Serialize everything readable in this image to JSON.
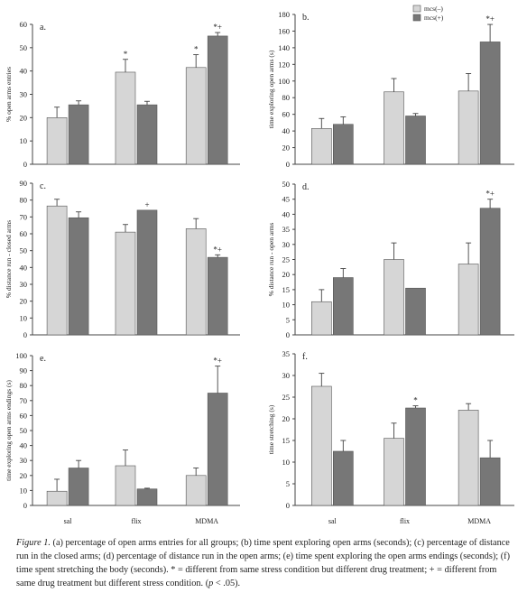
{
  "colors": {
    "mcs_minus": "#d6d6d6",
    "mcs_plus": "#777777",
    "marker": "#333333",
    "axis": "#444444"
  },
  "legend": {
    "items": [
      "mcs(–)",
      "mcs(+)"
    ],
    "placement": "top-right of panel b"
  },
  "categories": [
    "sal",
    "flix",
    "MDMA"
  ],
  "caption": {
    "lead": "Figure 1.",
    "body": " (a) percentage of open arms entries for all groups; (b) time spent exploring open arms (seconds); (c) percentage of distance run in the closed arms; (d) percentage of distance run in the open arms; (e) time spent exploring the open arms endings (seconds); (f) time spent stretching the body (seconds). * = different from same stress condition but different drug treatment; + = different from same drug treatment but different stress condition. (",
    "p": "p",
    "tail": " < .05)."
  },
  "chart_data": [
    {
      "type": "bar",
      "panel": "a.",
      "ylabel": "% open arms entries",
      "ylim": [
        0,
        60
      ],
      "ticks": [
        0,
        10,
        20,
        30,
        40,
        50,
        60
      ],
      "categories": [
        "sal",
        "flix",
        "MDMA"
      ],
      "show_xticks": false,
      "series": [
        {
          "name": "mcs(–)",
          "values": [
            20,
            39.5,
            41.5
          ],
          "errors": [
            4.5,
            5.5,
            5.5
          ],
          "marks": [
            "",
            "*",
            "*"
          ]
        },
        {
          "name": "mcs(+)",
          "values": [
            25.5,
            25.5,
            55
          ],
          "errors": [
            1.7,
            1.5,
            1.5
          ],
          "marks": [
            "",
            "",
            "*+"
          ]
        }
      ]
    },
    {
      "type": "bar",
      "panel": "b.",
      "ylabel": "time exploring open arms (s)",
      "ylim": [
        0,
        180
      ],
      "ticks": [
        0,
        20,
        40,
        60,
        80,
        100,
        120,
        140,
        160,
        180
      ],
      "categories": [
        "sal",
        "flix",
        "MDMA"
      ],
      "show_xticks": false,
      "legend": true,
      "series": [
        {
          "name": "mcs(–)",
          "values": [
            43,
            87,
            88
          ],
          "errors": [
            12,
            16,
            21
          ],
          "marks": [
            "",
            "",
            ""
          ]
        },
        {
          "name": "mcs(+)",
          "values": [
            48,
            58,
            147
          ],
          "errors": [
            9,
            3,
            21
          ],
          "marks": [
            "",
            "",
            "*+"
          ]
        }
      ]
    },
    {
      "type": "bar",
      "panel": "c.",
      "ylabel": "% distance run - closed arms",
      "ylim": [
        0,
        90
      ],
      "ticks": [
        0,
        10,
        20,
        30,
        40,
        50,
        60,
        70,
        80,
        90
      ],
      "categories": [
        "sal",
        "flix",
        "MDMA"
      ],
      "show_xticks": false,
      "series": [
        {
          "name": "mcs(–)",
          "values": [
            76.5,
            61,
            63
          ],
          "errors": [
            4,
            4.5,
            6
          ],
          "marks": [
            "",
            "",
            ""
          ]
        },
        {
          "name": "mcs(+)",
          "values": [
            69.5,
            74,
            46
          ],
          "errors": [
            3.5,
            0,
            1.5
          ],
          "marks": [
            "",
            "+",
            "*+"
          ]
        }
      ]
    },
    {
      "type": "bar",
      "panel": "d.",
      "ylabel": "% distance run - open arms",
      "ylim": [
        0,
        50
      ],
      "ticks": [
        0,
        5,
        10,
        15,
        20,
        25,
        30,
        35,
        40,
        45,
        50
      ],
      "categories": [
        "sal",
        "flix",
        "MDMA"
      ],
      "show_xticks": false,
      "series": [
        {
          "name": "mcs(–)",
          "values": [
            11,
            25,
            23.5
          ],
          "errors": [
            4,
            5.5,
            7
          ],
          "marks": [
            "",
            "",
            ""
          ]
        },
        {
          "name": "mcs(+)",
          "values": [
            19,
            15.5,
            42
          ],
          "errors": [
            3,
            0,
            3
          ],
          "marks": [
            "",
            "",
            "*+"
          ]
        }
      ]
    },
    {
      "type": "bar",
      "panel": "e.",
      "ylabel": "time exploring open arms endings (s)",
      "ylim": [
        0,
        100
      ],
      "ticks": [
        0,
        10,
        20,
        30,
        40,
        50,
        60,
        70,
        80,
        90,
        100
      ],
      "categories": [
        "sal",
        "flix",
        "MDMA"
      ],
      "show_xticks": true,
      "series": [
        {
          "name": "mcs(–)",
          "values": [
            9.5,
            26.5,
            20
          ],
          "errors": [
            8,
            10.5,
            5
          ],
          "marks": [
            "",
            "",
            ""
          ]
        },
        {
          "name": "mcs(+)",
          "values": [
            25,
            11,
            75
          ],
          "errors": [
            5,
            0.5,
            18
          ],
          "marks": [
            "",
            "",
            "*+"
          ]
        }
      ]
    },
    {
      "type": "bar",
      "panel": "f.",
      "ylabel": "time stretching (s)",
      "ylim": [
        0,
        35
      ],
      "ticks": [
        0,
        5,
        10,
        15,
        20,
        25,
        30,
        35
      ],
      "categories": [
        "sal",
        "flix",
        "MDMA"
      ],
      "show_xticks": true,
      "series": [
        {
          "name": "mcs(–)",
          "values": [
            27.5,
            15.5,
            22
          ],
          "errors": [
            3,
            3.5,
            1.5
          ],
          "marks": [
            "",
            "",
            ""
          ]
        },
        {
          "name": "mcs(+)",
          "values": [
            12.5,
            22.5,
            11
          ],
          "errors": [
            2.5,
            0.5,
            4
          ],
          "marks": [
            "",
            "*",
            ""
          ]
        }
      ]
    }
  ]
}
